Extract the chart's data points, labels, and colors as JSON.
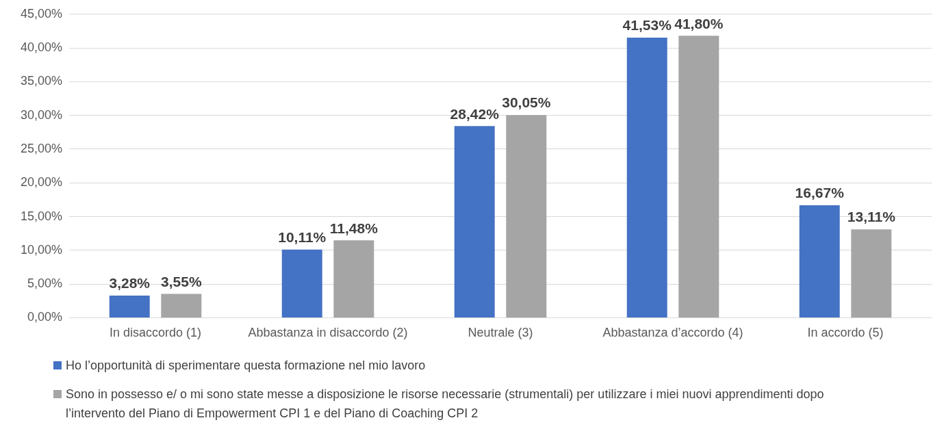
{
  "chart_data": {
    "type": "bar",
    "categories": [
      "In disaccordo (1)",
      "Abbastanza in disaccordo (2)",
      "Neutrale (3)",
      "Abbastanza d’accordo (4)",
      "In accordo (5)"
    ],
    "series": [
      {
        "name": "Ho l’opportunità di sperimentare questa formazione nel mio lavoro",
        "color": "#4472c4",
        "values": [
          3.28,
          10.11,
          28.42,
          41.53,
          16.67
        ],
        "value_labels": [
          "3,28%",
          "10,11%",
          "28,42%",
          "41,53%",
          "16,67%"
        ]
      },
      {
        "name": "Sono in possesso e/ o mi  sono state messe a disposizione le risorse necessarie (strumentali) per utilizzare i miei  nuovi apprendimenti dopo l’intervento del Piano di Empowerment CPI 1 e del Piano di Coaching CPI 2",
        "color": "#a5a5a5",
        "values": [
          3.55,
          11.48,
          30.05,
          41.8,
          13.11
        ],
        "value_labels": [
          "3,55%",
          "11,48%",
          "30,05%",
          "41,80%",
          "13,11%"
        ]
      }
    ],
    "ylim": [
      0,
      45
    ],
    "yticks": [
      {
        "value": 0,
        "label": "0,00%"
      },
      {
        "value": 5,
        "label": "5,00%"
      },
      {
        "value": 10,
        "label": "10,00%"
      },
      {
        "value": 15,
        "label": "15,00%"
      },
      {
        "value": 20,
        "label": "20,00%"
      },
      {
        "value": 25,
        "label": "25,00%"
      },
      {
        "value": 30,
        "label": "30,00%"
      },
      {
        "value": 35,
        "label": "35,00%"
      },
      {
        "value": 40,
        "label": "40,00%"
      },
      {
        "value": 45,
        "label": "45,00%"
      }
    ],
    "grid": "y",
    "legend": "bottom"
  }
}
